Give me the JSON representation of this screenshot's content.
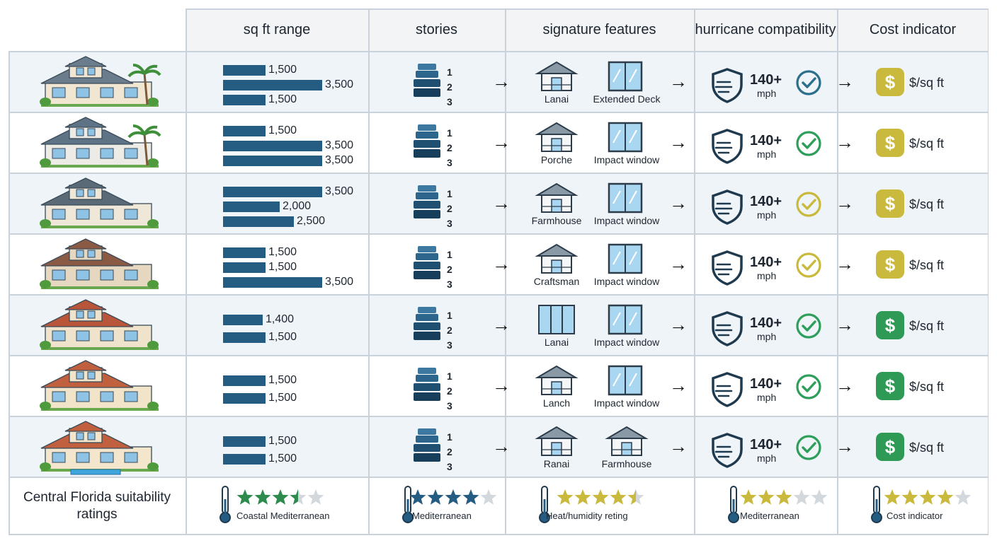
{
  "headers": [
    "sq ft range",
    "stories",
    "signature features",
    "hurricane compatibility",
    "Cost indicator"
  ],
  "chart_data": {
    "type": "table",
    "rows": [
      {
        "sqft": [
          1500,
          3500,
          1500
        ],
        "sqft_labels": [
          "1,500",
          "3,500",
          "1,500"
        ],
        "features": [
          "Lanai",
          "Extended Deck"
        ],
        "feature_icons": [
          "lanai-icon",
          "extended-deck-window-icon"
        ],
        "wind": "140+",
        "wind_unit": "mph",
        "check_color": "#2b6f8c",
        "cost_color": "#c9b93c",
        "cost_label": "$/sq ft"
      },
      {
        "sqft": [
          1500,
          3500,
          3500
        ],
        "sqft_labels": [
          "1,500",
          "3,500",
          "3,500"
        ],
        "features": [
          "Porche",
          "Impact window"
        ],
        "feature_icons": [
          "porch-icon",
          "impact-window-icon"
        ],
        "wind": "140+",
        "wind_unit": "mph",
        "check_color": "#2e9f5a",
        "cost_color": "#c9b93c",
        "cost_label": "$/sq ft"
      },
      {
        "sqft": [
          3500,
          2000,
          2500
        ],
        "sqft_labels": [
          "3,500",
          "2,000",
          "2,500"
        ],
        "features": [
          "Farmhouse",
          "Impact window"
        ],
        "feature_icons": [
          "farmhouse-icon",
          "impact-window-icon"
        ],
        "wind": "140+",
        "wind_unit": "mph",
        "check_color": "#c9b93c",
        "cost_color": "#c9b93c",
        "cost_label": "$/sq ft"
      },
      {
        "sqft": [
          1500,
          1500,
          3500
        ],
        "sqft_labels": [
          "1,500",
          "1,500",
          "3,500"
        ],
        "features": [
          "Craftsman",
          "Impact window"
        ],
        "feature_icons": [
          "craftsman-icon",
          "impact-window-icon"
        ],
        "wind": "140+",
        "wind_unit": "mph",
        "check_color": "#c9b93c",
        "cost_color": "#c9b93c",
        "cost_label": "$/sq ft"
      },
      {
        "sqft": [
          1400,
          1500
        ],
        "sqft_labels": [
          "1,400",
          "1,500"
        ],
        "features": [
          "Lanai",
          "Impact window"
        ],
        "feature_icons": [
          "triple-window-icon",
          "impact-window-icon"
        ],
        "wind": "140+",
        "wind_unit": "mph",
        "check_color": "#2e9f5a",
        "cost_color": "#2e9a55",
        "cost_label": "$/sq ft"
      },
      {
        "sqft": [
          1500,
          1500
        ],
        "sqft_labels": [
          "1,500",
          "1,500"
        ],
        "features": [
          "Lanch",
          "Impact window"
        ],
        "feature_icons": [
          "lanch-icon",
          "impact-window-icon"
        ],
        "wind": "140+",
        "wind_unit": "mph",
        "check_color": "#2e9f5a",
        "cost_color": "#2e9a55",
        "cost_label": "$/sq ft"
      },
      {
        "sqft": [
          1500,
          1500
        ],
        "sqft_labels": [
          "1,500",
          "1,500"
        ],
        "features": [
          "Ranai",
          "Farmhouse"
        ],
        "feature_icons": [
          "ranai-icon",
          "farmhouse-icon"
        ],
        "wind": "140+",
        "wind_unit": "mph",
        "check_color": "#2e9f5a",
        "cost_color": "#2e9a55",
        "cost_label": "$/sq ft"
      }
    ],
    "stories": [
      "1",
      "2",
      "3"
    ],
    "ratings_title": "Central Florida suitability ratings",
    "ratings": [
      {
        "label": "Coastal Mediterranean",
        "stars": 3.5,
        "color": "#2e8b4e"
      },
      {
        "label": "Mediterranean",
        "stars": 4,
        "color": "#245c82"
      },
      {
        "label": "Heat/humidity reting",
        "stars": 4.5,
        "color": "#c9b93c"
      },
      {
        "label": "Mediterranean",
        "stars": 3,
        "color": "#c9b93c"
      },
      {
        "label": "Cost indicator",
        "stars": 4,
        "color": "#c9b93c"
      }
    ]
  }
}
